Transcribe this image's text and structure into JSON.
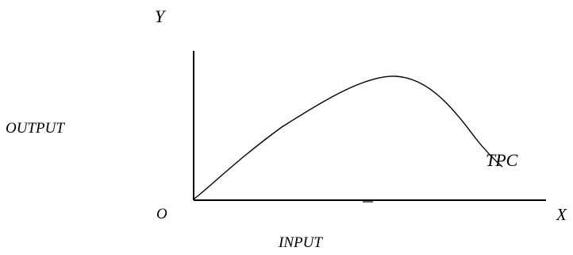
{
  "labels": {
    "y_axis": "Y",
    "x_axis": "X",
    "origin": "O",
    "y_axis_title": "OUTPUT",
    "x_axis_title": "INPUT",
    "curve": "TPC"
  },
  "colors": {
    "line": "#000000",
    "background": "#ffffff"
  }
}
